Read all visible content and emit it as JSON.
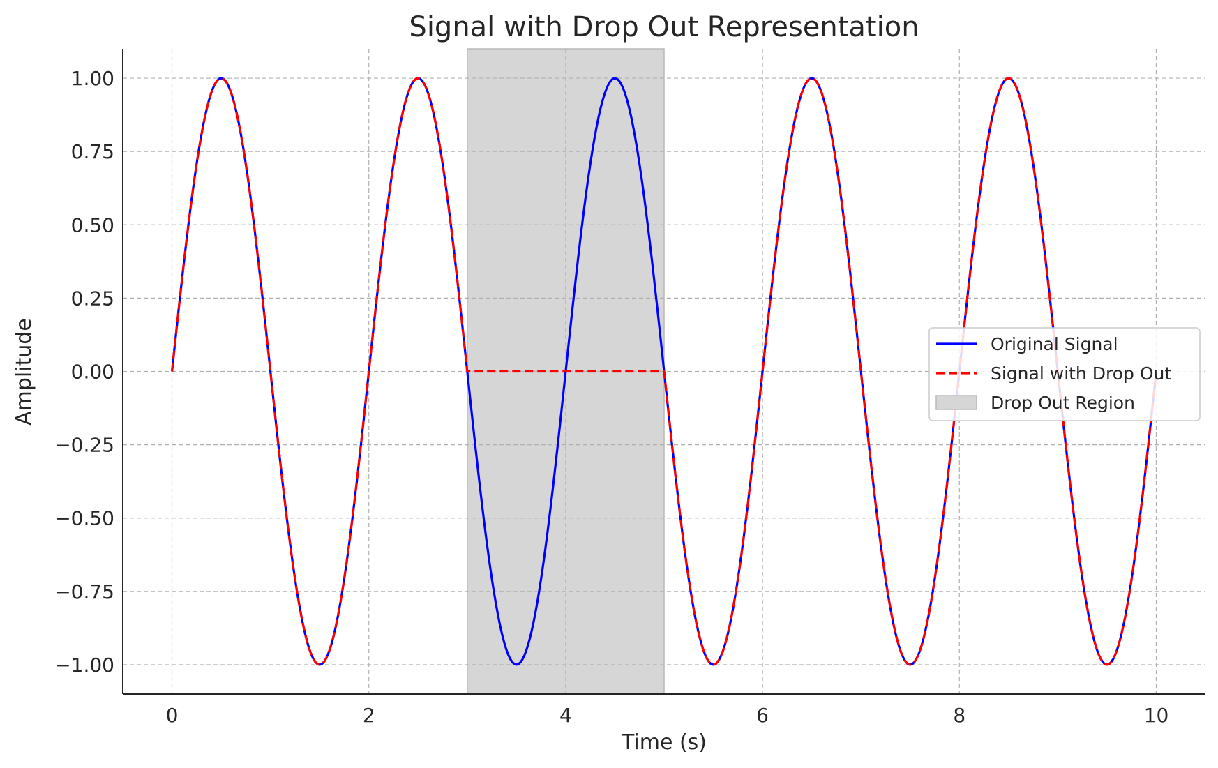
{
  "chart_data": {
    "type": "line",
    "title": "Signal with Drop Out Representation",
    "xlabel": "Time (s)",
    "ylabel": "Amplitude",
    "xlim": [
      -0.5,
      10.5
    ],
    "ylim": [
      -1.1,
      1.1
    ],
    "x_ticks": [
      0,
      2,
      4,
      6,
      8,
      10
    ],
    "x_tick_labels": [
      "0",
      "2",
      "4",
      "6",
      "8",
      "10"
    ],
    "y_ticks": [
      1.0,
      0.75,
      0.5,
      0.25,
      0.0,
      -0.25,
      -0.5,
      -0.75,
      -1.0
    ],
    "y_tick_labels": [
      "1.00",
      "0.75",
      "0.50",
      "0.25",
      "0.00",
      "−0.25",
      "−0.50",
      "−0.75",
      "−1.00"
    ],
    "grid": true,
    "legend_position": "center-right",
    "series": [
      {
        "name": "Original Signal",
        "color": "#0000ff",
        "style": "solid",
        "x": [
          0,
          0.25,
          0.5,
          0.75,
          1,
          1.25,
          1.5,
          1.75,
          2,
          2.25,
          2.5,
          2.75,
          3,
          3.25,
          3.5,
          3.75,
          4,
          4.25,
          4.5,
          4.75,
          5,
          5.25,
          5.5,
          5.75,
          6,
          6.25,
          6.5,
          6.75,
          7,
          7.25,
          7.5,
          7.75,
          8,
          8.25,
          8.5,
          8.75,
          9,
          9.25,
          9.5,
          9.75,
          10
        ],
        "y": [
          0,
          0.707,
          1,
          0.707,
          0,
          -0.707,
          -1,
          -0.707,
          0,
          0.707,
          1,
          0.707,
          0,
          -0.707,
          -1,
          -0.707,
          0,
          0.707,
          1,
          0.707,
          0,
          -0.707,
          -1,
          -0.707,
          0,
          0.707,
          1,
          0.707,
          0,
          -0.707,
          -1,
          -0.707,
          0,
          0.707,
          1,
          0.707,
          0,
          -0.707,
          -1,
          -0.707,
          0
        ]
      },
      {
        "name": "Signal with Drop Out",
        "color": "#ff0000",
        "style": "dashed",
        "x": [
          0,
          0.25,
          0.5,
          0.75,
          1,
          1.25,
          1.5,
          1.75,
          2,
          2.25,
          2.5,
          2.75,
          3,
          3.25,
          3.5,
          3.75,
          4,
          4.25,
          4.5,
          4.75,
          5,
          5.25,
          5.5,
          5.75,
          6,
          6.25,
          6.5,
          6.75,
          7,
          7.25,
          7.5,
          7.75,
          8,
          8.25,
          8.5,
          8.75,
          9,
          9.25,
          9.5,
          9.75,
          10
        ],
        "y": [
          0,
          0.707,
          1,
          0.707,
          0,
          -0.707,
          -1,
          -0.707,
          0,
          0.707,
          1,
          0.707,
          0,
          0,
          0,
          0,
          0,
          0,
          0,
          0,
          0,
          -0.707,
          -1,
          -0.707,
          0,
          0.707,
          1,
          0.707,
          0,
          -0.707,
          -1,
          -0.707,
          0,
          0.707,
          1,
          0.707,
          0,
          -0.707,
          -1,
          -0.707,
          0
        ]
      }
    ],
    "regions": [
      {
        "name": "Drop Out Region",
        "x_start": 3,
        "x_end": 5,
        "color": "#d6d6d6"
      }
    ],
    "legend": [
      "Original Signal",
      "Signal with Drop Out",
      "Drop Out Region"
    ]
  }
}
